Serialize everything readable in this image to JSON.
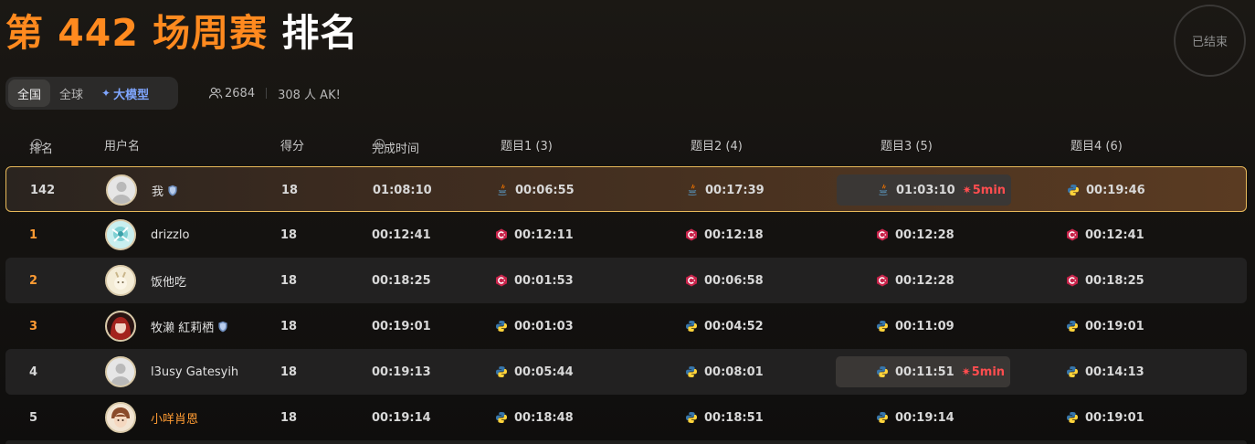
{
  "title": {
    "part1": "第 442 场周赛",
    "part2": "排名"
  },
  "status": "已结束",
  "tabs": [
    {
      "label": "全国",
      "active": true
    },
    {
      "label": "全球",
      "active": false
    },
    {
      "label": "大模型",
      "active": false,
      "icon": "sparkle-icon"
    }
  ],
  "stats": {
    "participants": "2684",
    "ak": "308 人 AK!"
  },
  "columns": {
    "rank": "排名",
    "user": "用户名",
    "score": "得分",
    "finish": "完成时间",
    "q1": "题目1 (3)",
    "q2": "题目2 (4)",
    "q3": "题目3 (5)",
    "q4": "题目4 (6)"
  },
  "rows": [
    {
      "rank": "142",
      "name": "我",
      "verified": true,
      "score": "18",
      "finish": "01:08:10",
      "avatar": "default",
      "q": [
        {
          "t": "00:06:55",
          "lang": "java"
        },
        {
          "t": "00:17:39",
          "lang": "java"
        },
        {
          "t": "01:03:10",
          "lang": "java",
          "penalty": "5min"
        },
        {
          "t": "00:19:46",
          "lang": "python"
        }
      ]
    },
    {
      "rank": "1",
      "name": "drizzlo",
      "verified": false,
      "score": "18",
      "finish": "00:12:41",
      "avatar": "teal",
      "q": [
        {
          "t": "00:12:11",
          "lang": "cpp"
        },
        {
          "t": "00:12:18",
          "lang": "cpp"
        },
        {
          "t": "00:12:28",
          "lang": "cpp"
        },
        {
          "t": "00:12:41",
          "lang": "cpp"
        }
      ]
    },
    {
      "rank": "2",
      "name": "饭他吃",
      "verified": false,
      "score": "18",
      "finish": "00:18:25",
      "avatar": "cream",
      "q": [
        {
          "t": "00:01:53",
          "lang": "cpp"
        },
        {
          "t": "00:06:58",
          "lang": "cpp"
        },
        {
          "t": "00:12:28",
          "lang": "cpp"
        },
        {
          "t": "00:18:25",
          "lang": "cpp"
        }
      ]
    },
    {
      "rank": "3",
      "name": "牧濑 紅莉栖",
      "verified": true,
      "score": "18",
      "finish": "00:19:01",
      "avatar": "red",
      "q": [
        {
          "t": "00:01:03",
          "lang": "python"
        },
        {
          "t": "00:04:52",
          "lang": "python"
        },
        {
          "t": "00:11:09",
          "lang": "python"
        },
        {
          "t": "00:19:01",
          "lang": "python"
        }
      ]
    },
    {
      "rank": "4",
      "name": "l3usy Gatesyih",
      "verified": false,
      "score": "18",
      "finish": "00:19:13",
      "avatar": "default",
      "q": [
        {
          "t": "00:05:44",
          "lang": "python"
        },
        {
          "t": "00:08:01",
          "lang": "python"
        },
        {
          "t": "00:11:51",
          "lang": "python",
          "penalty": "5min"
        },
        {
          "t": "00:14:13",
          "lang": "python"
        }
      ]
    },
    {
      "rank": "5",
      "name": "小咩肖恩",
      "verified": false,
      "score": "18",
      "finish": "00:19:14",
      "avatar": "brown",
      "q": [
        {
          "t": "00:18:48",
          "lang": "python"
        },
        {
          "t": "00:18:51",
          "lang": "python"
        },
        {
          "t": "00:19:14",
          "lang": "python"
        },
        {
          "t": "00:19:01",
          "lang": "python"
        }
      ]
    }
  ]
}
